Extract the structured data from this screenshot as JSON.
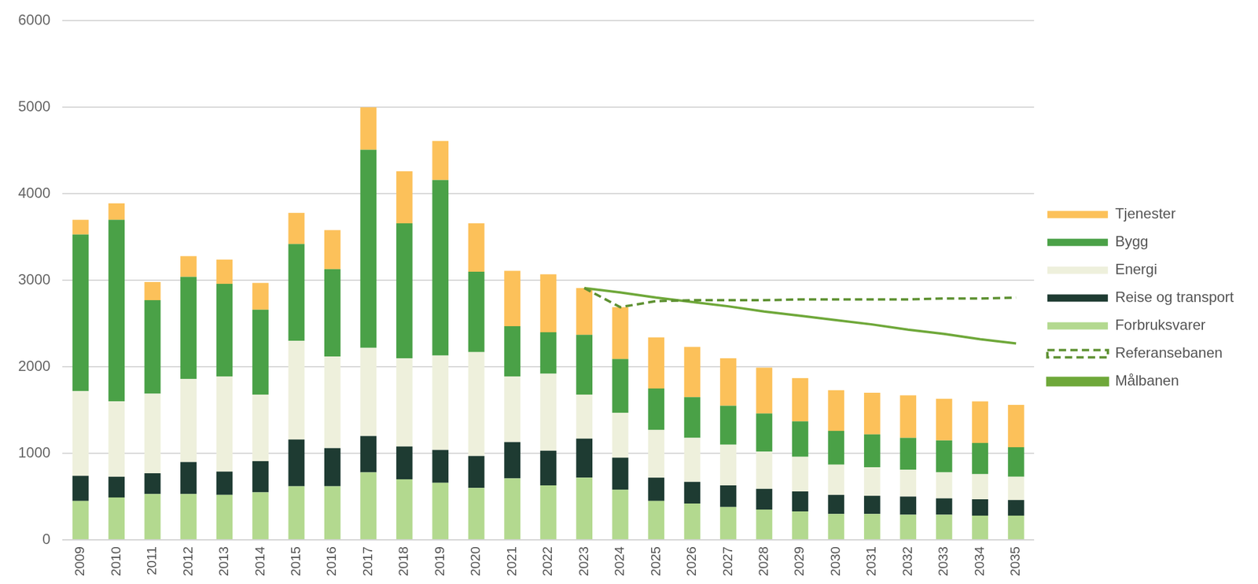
{
  "chart_data": {
    "type": "bar",
    "stacked": true,
    "grid": true,
    "legend": "right",
    "categories": [
      "2009",
      "2010",
      "2011",
      "2012",
      "2013",
      "2014",
      "2015",
      "2016",
      "2017",
      "2018",
      "2019",
      "2020",
      "2021",
      "2022",
      "2023",
      "2024",
      "2025",
      "2026",
      "2027",
      "2028",
      "2029",
      "2030",
      "2031",
      "2032",
      "2033",
      "2034",
      "2035"
    ],
    "ylim": [
      0,
      6000
    ],
    "yticks": [
      0,
      1000,
      2000,
      3000,
      4000,
      5000,
      6000
    ],
    "series": [
      {
        "name": "Forbruksvarer",
        "type": "bar",
        "color": "#b3d98f",
        "values": [
          450,
          490,
          530,
          530,
          520,
          550,
          620,
          620,
          780,
          700,
          660,
          600,
          710,
          630,
          720,
          580,
          450,
          420,
          380,
          350,
          330,
          300,
          300,
          290,
          290,
          280,
          280
        ]
      },
      {
        "name": "Reise og transport",
        "type": "bar",
        "color": "#1e3b32",
        "values": [
          290,
          240,
          240,
          370,
          270,
          360,
          540,
          440,
          420,
          380,
          380,
          370,
          420,
          400,
          450,
          370,
          270,
          250,
          250,
          240,
          230,
          220,
          210,
          210,
          190,
          190,
          180
        ]
      },
      {
        "name": "Energi",
        "type": "bar",
        "color": "#eef0dc",
        "values": [
          980,
          870,
          920,
          960,
          1100,
          770,
          1140,
          1060,
          1020,
          1020,
          1090,
          1200,
          760,
          890,
          510,
          520,
          550,
          510,
          470,
          430,
          400,
          350,
          330,
          310,
          300,
          290,
          270
        ]
      },
      {
        "name": "Bygg",
        "type": "bar",
        "color": "#4aa147",
        "values": [
          1810,
          2100,
          1080,
          1180,
          1070,
          980,
          1120,
          1010,
          2290,
          1560,
          2030,
          930,
          580,
          480,
          690,
          620,
          480,
          470,
          450,
          440,
          410,
          390,
          380,
          370,
          370,
          360,
          340
        ]
      },
      {
        "name": "Tjenester",
        "type": "bar",
        "color": "#fcc15a",
        "values": [
          170,
          190,
          210,
          240,
          280,
          310,
          360,
          450,
          490,
          600,
          450,
          560,
          640,
          670,
          540,
          600,
          590,
          580,
          550,
          530,
          500,
          470,
          480,
          490,
          480,
          480,
          490
        ]
      },
      {
        "name": "Referansebanen",
        "type": "line",
        "line_style": "dashed",
        "color": "#5e9132",
        "values": [
          null,
          null,
          null,
          null,
          null,
          null,
          null,
          null,
          null,
          null,
          null,
          null,
          null,
          null,
          2910,
          2690,
          2760,
          2770,
          2770,
          2770,
          2780,
          2780,
          2780,
          2780,
          2790,
          2790,
          2800
        ]
      },
      {
        "name": "Målbanen",
        "type": "line",
        "line_style": "solid",
        "color": "#6fa83a",
        "values": [
          null,
          null,
          null,
          null,
          null,
          null,
          null,
          null,
          null,
          null,
          null,
          null,
          null,
          null,
          2910,
          2860,
          2800,
          2750,
          2700,
          2640,
          2590,
          2540,
          2490,
          2430,
          2380,
          2320,
          2270
        ]
      }
    ]
  }
}
